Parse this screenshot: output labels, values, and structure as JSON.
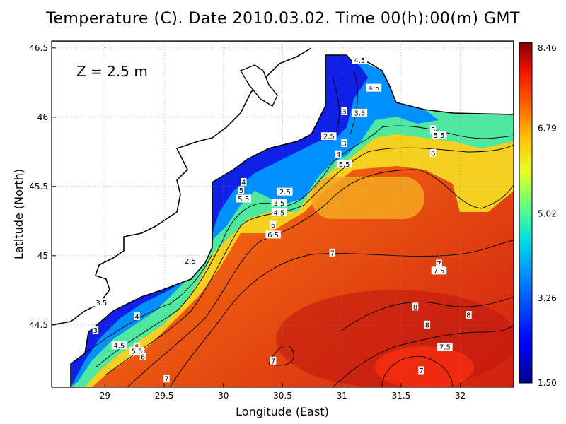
{
  "chart_data": {
    "type": "heatmap",
    "title": "Temperature (C). Date 2010.03.02. Time 00(h):00(m) GMT",
    "annotation": "Z = 2.5 m",
    "xlabel": "Longitude (East)",
    "ylabel": "Latitude (North)",
    "xlim": [
      28.55,
      32.45
    ],
    "ylim": [
      44.05,
      46.55
    ],
    "xticks": [
      29,
      29.5,
      30,
      30.5,
      31,
      31.5,
      32
    ],
    "xtick_labels": [
      "29",
      "29.5",
      "30",
      "30.5",
      "31",
      "31.5",
      "32"
    ],
    "yticks": [
      44.5,
      45,
      45.5,
      46,
      46.5
    ],
    "ytick_labels": [
      "44.5",
      "45",
      "45.5",
      "46",
      "46.5"
    ],
    "grid": true,
    "colorbar": {
      "min": 1.5,
      "max": 8.46,
      "ticks": [
        1.5,
        3.26,
        5.02,
        6.79,
        8.46
      ],
      "tick_labels": [
        "1.50",
        "3.26",
        "5.02",
        "6.79",
        "8.46"
      ]
    },
    "contour_labels": [
      {
        "text": "4.5",
        "lon": 31.15,
        "lat": 46.41
      },
      {
        "text": "4.5",
        "lon": 31.27,
        "lat": 46.21
      },
      {
        "text": "3",
        "lon": 31.02,
        "lat": 46.04
      },
      {
        "text": "3.5",
        "lon": 31.15,
        "lat": 46.03
      },
      {
        "text": "2.5",
        "lon": 30.89,
        "lat": 45.86
      },
      {
        "text": "3",
        "lon": 31.02,
        "lat": 45.81
      },
      {
        "text": "4",
        "lon": 30.97,
        "lat": 45.73
      },
      {
        "text": "5.5",
        "lon": 31.02,
        "lat": 45.66
      },
      {
        "text": "5",
        "lon": 31.77,
        "lat": 45.91
      },
      {
        "text": "5.5",
        "lon": 31.82,
        "lat": 45.87
      },
      {
        "text": "6",
        "lon": 31.77,
        "lat": 45.74
      },
      {
        "text": "4",
        "lon": 30.17,
        "lat": 45.53
      },
      {
        "text": "5",
        "lon": 30.15,
        "lat": 45.47
      },
      {
        "text": "5.5",
        "lon": 30.17,
        "lat": 45.41
      },
      {
        "text": "2.5",
        "lon": 30.52,
        "lat": 45.46
      },
      {
        "text": "3.5",
        "lon": 30.47,
        "lat": 45.38
      },
      {
        "text": "4.5",
        "lon": 30.47,
        "lat": 45.31
      },
      {
        "text": "6",
        "lon": 30.42,
        "lat": 45.22
      },
      {
        "text": "6.5",
        "lon": 30.42,
        "lat": 45.15
      },
      {
        "text": "7",
        "lon": 30.92,
        "lat": 45.02
      },
      {
        "text": "2.5",
        "lon": 29.72,
        "lat": 44.96
      },
      {
        "text": "7",
        "lon": 31.82,
        "lat": 44.94
      },
      {
        "text": "7.5",
        "lon": 31.82,
        "lat": 44.89
      },
      {
        "text": "3.5",
        "lon": 28.97,
        "lat": 44.66
      },
      {
        "text": "4",
        "lon": 29.27,
        "lat": 44.56
      },
      {
        "text": "3",
        "lon": 28.92,
        "lat": 44.46
      },
      {
        "text": "4.5",
        "lon": 29.12,
        "lat": 44.35
      },
      {
        "text": "5",
        "lon": 29.27,
        "lat": 44.34
      },
      {
        "text": "5.5",
        "lon": 29.27,
        "lat": 44.31
      },
      {
        "text": "6",
        "lon": 29.32,
        "lat": 44.27
      },
      {
        "text": "8",
        "lon": 31.62,
        "lat": 44.63
      },
      {
        "text": "8",
        "lon": 32.07,
        "lat": 44.57
      },
      {
        "text": "8",
        "lon": 31.72,
        "lat": 44.5
      },
      {
        "text": "7.5",
        "lon": 31.87,
        "lat": 44.34
      },
      {
        "text": "7",
        "lon": 30.42,
        "lat": 44.24
      },
      {
        "text": "7",
        "lon": 31.67,
        "lat": 44.17
      },
      {
        "text": "7",
        "lon": 29.52,
        "lat": 44.11
      }
    ]
  }
}
